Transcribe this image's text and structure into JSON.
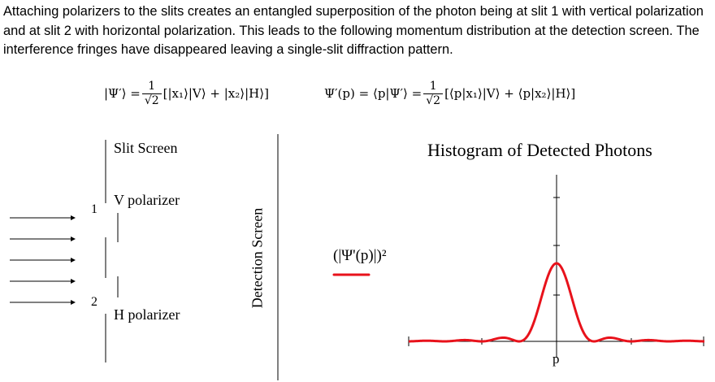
{
  "intro_text": "Attaching polarizers to the slits creates an entangled superposition of the photon being at slit 1 with vertical polarization and at slit 2 with horizontal polarization. This leads to the following momentum distribution at the detection screen. The interference fringes have disappeared leaving a single-slit diffraction pattern.",
  "equations": {
    "left_lhs": "|Ψ′⟩ =",
    "left_num": "1",
    "left_den": "√2",
    "left_rhs": "[|x₁⟩|V⟩ + |x₂⟩|H⟩]",
    "right_lhs": "Ψ′(p) = ⟨p|Ψ′⟩ =",
    "right_num": "1",
    "right_den": "√2",
    "right_rhs": "[⟨p|x₁⟩|V⟩ + ⟨p|x₂⟩|H⟩]"
  },
  "diagram": {
    "slit_screen_label": "Slit Screen",
    "v_polarizer_label": "V polarizer",
    "h_polarizer_label": "H polarizer",
    "slit1_label": "1",
    "slit2_label": "2",
    "detection_screen_label": "Detection Screen",
    "probability_label": "(|Ψ'(p)|)²"
  },
  "histogram": {
    "title": "Histogram of Detected Photons",
    "x_label": "p",
    "curve_color": "#e8121b"
  }
}
